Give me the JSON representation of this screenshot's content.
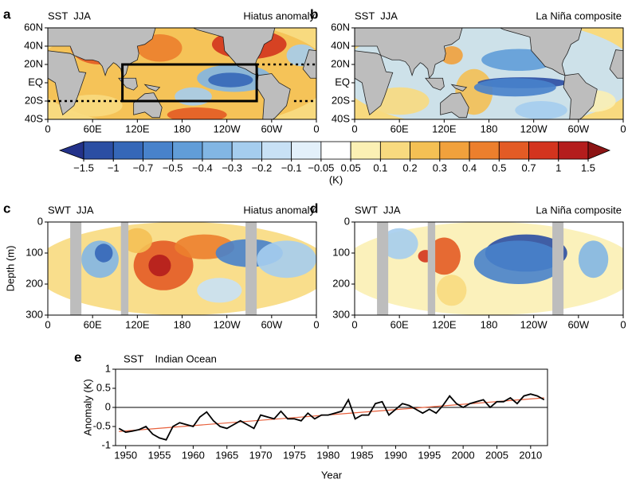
{
  "chart_data": [
    {
      "type": "map",
      "panel": "a",
      "title": "SST  JJA",
      "subtitle": "Hiatus anomaly",
      "xlim": [
        0,
        360
      ],
      "xticks": [
        0,
        {
          "value": 60,
          "label": "60E"
        },
        {
          "value": 120,
          "label": "120E"
        },
        180,
        {
          "value": 240,
          "label": "120W"
        },
        {
          "value": 300,
          "label": "60W"
        },
        {
          "value": 360,
          "label": "0"
        }
      ],
      "ylim": [
        -40,
        60
      ],
      "yticks": [
        {
          "value": -40,
          "label": "40S"
        },
        {
          "value": -20,
          "label": "20S"
        },
        {
          "value": 0,
          "label": "EQ"
        },
        {
          "value": 20,
          "label": "20N"
        },
        {
          "value": 40,
          "label": "40N"
        },
        {
          "value": 60,
          "label": "60N"
        }
      ]
    },
    {
      "type": "map",
      "panel": "b",
      "title": "SST  JJA",
      "subtitle": "La Niña composite",
      "xlim": [
        0,
        360
      ],
      "xticks": [
        0,
        {
          "value": 60,
          "label": "60E"
        },
        {
          "value": 120,
          "label": "120E"
        },
        180,
        {
          "value": 240,
          "label": "120W"
        },
        {
          "value": 300,
          "label": "60W"
        },
        {
          "value": 360,
          "label": "0"
        }
      ],
      "ylim": [
        -40,
        60
      ],
      "yticks": [
        {
          "value": -40,
          "label": "40S"
        },
        {
          "value": -20,
          "label": "20S"
        },
        {
          "value": 0,
          "label": "EQ"
        },
        {
          "value": 20,
          "label": "20N"
        },
        {
          "value": 40,
          "label": "40N"
        },
        {
          "value": 60,
          "label": "60N"
        }
      ]
    },
    {
      "type": "section",
      "panel": "c",
      "title": "SWT  JJA",
      "subtitle": "Hiatus anomaly",
      "ylabel": "Depth (m)",
      "xlim": [
        0,
        360
      ],
      "xticks": [
        0,
        {
          "value": 60,
          "label": "60E"
        },
        {
          "value": 120,
          "label": "120E"
        },
        180,
        {
          "value": 240,
          "label": "120W"
        },
        {
          "value": 300,
          "label": "60W"
        },
        {
          "value": 360,
          "label": "0"
        }
      ],
      "ylim": [
        0,
        300
      ],
      "y_inverted": true,
      "yticks": [
        0,
        100,
        200,
        300
      ]
    },
    {
      "type": "section",
      "panel": "d",
      "title": "SWT  JJA",
      "subtitle": "La Niña composite",
      "xlim": [
        0,
        360
      ],
      "xticks": [
        0,
        {
          "value": 60,
          "label": "60E"
        },
        {
          "value": 120,
          "label": "120E"
        },
        180,
        {
          "value": 240,
          "label": "120W"
        },
        {
          "value": 300,
          "label": "60W"
        },
        {
          "value": 360,
          "label": "0"
        }
      ],
      "ylim": [
        0,
        300
      ],
      "y_inverted": true,
      "yticks": [
        0,
        100,
        200,
        300
      ]
    },
    {
      "type": "line",
      "panel": "e",
      "title": "SST    Indian Ocean",
      "xlabel": "Year",
      "ylabel": "Anomaly (K)",
      "xlim": [
        1948.5,
        2012.5
      ],
      "xticks": [
        1950,
        1955,
        1960,
        1965,
        1970,
        1975,
        1980,
        1985,
        1990,
        1995,
        2000,
        2005,
        2010
      ],
      "ylim": [
        -1,
        1
      ],
      "yticks": [
        -1,
        -0.5,
        0,
        0.5,
        1
      ],
      "series": [
        {
          "color": "#000000",
          "x": [
            1949,
            1950,
            1951,
            1952,
            1953,
            1954,
            1955,
            1956,
            1957,
            1958,
            1959,
            1960,
            1961,
            1962,
            1963,
            1964,
            1965,
            1966,
            1967,
            1968,
            1969,
            1970,
            1971,
            1972,
            1973,
            1974,
            1975,
            1976,
            1977,
            1978,
            1979,
            1980,
            1981,
            1982,
            1983,
            1984,
            1985,
            1986,
            1987,
            1988,
            1989,
            1990,
            1991,
            1992,
            1993,
            1994,
            1995,
            1996,
            1997,
            1998,
            1999,
            2000,
            2001,
            2002,
            2003,
            2004,
            2005,
            2006,
            2007,
            2008,
            2009,
            2010,
            2011,
            2012
          ],
          "values": [
            -0.55,
            -0.65,
            -0.62,
            -0.58,
            -0.5,
            -0.7,
            -0.8,
            -0.85,
            -0.5,
            -0.4,
            -0.45,
            -0.5,
            -0.25,
            -0.12,
            -0.35,
            -0.5,
            -0.55,
            -0.45,
            -0.35,
            -0.45,
            -0.55,
            -0.2,
            -0.25,
            -0.3,
            -0.1,
            -0.3,
            -0.3,
            -0.35,
            -0.15,
            -0.3,
            -0.2,
            -0.2,
            -0.15,
            -0.1,
            0.2,
            -0.3,
            -0.2,
            -0.2,
            0.1,
            0.15,
            -0.2,
            -0.05,
            0.1,
            0.05,
            -0.05,
            -0.15,
            -0.05,
            -0.15,
            0.05,
            0.3,
            0.1,
            0.0,
            0.1,
            0.15,
            0.2,
            0.0,
            0.15,
            0.15,
            0.25,
            0.1,
            0.3,
            0.35,
            0.3,
            0.2
          ]
        },
        {
          "color": "#e8603c",
          "x": [
            1949,
            2012
          ],
          "values": [
            -0.63,
            0.25
          ]
        }
      ]
    }
  ],
  "colorbar": {
    "unit": "(K)",
    "ticks": [
      {
        "value": -1.5,
        "label": "−1.5"
      },
      {
        "value": -1,
        "label": "−1"
      },
      {
        "value": -0.7,
        "label": "−0.7"
      },
      {
        "value": -0.5,
        "label": "−0.5"
      },
      {
        "value": -0.4,
        "label": "−0.4"
      },
      {
        "value": -0.3,
        "label": "−0.3"
      },
      {
        "value": -0.2,
        "label": "−0.2"
      },
      {
        "value": -0.1,
        "label": "−0.1"
      },
      {
        "value": -0.05,
        "label": "−0.05"
      },
      0.05,
      0.1,
      0.2,
      0.3,
      0.4,
      0.5,
      0.7,
      1,
      1.5
    ],
    "colors": [
      "#23328a",
      "#2b4ea3",
      "#3567b8",
      "#4882cb",
      "#619dd8",
      "#82b6e4",
      "#a5cdee",
      "#c8e1f5",
      "#e3f0fa",
      "#ffffff",
      "#fbf0b4",
      "#f8da7f",
      "#f4c054",
      "#f1a13c",
      "#ec7f2d",
      "#e35b25",
      "#d3341e",
      "#b41d1d",
      "#8c1414"
    ]
  }
}
